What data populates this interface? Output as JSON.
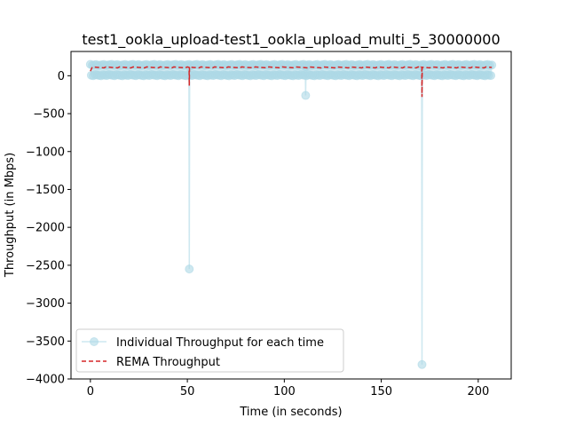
{
  "chart_data": {
    "type": "line",
    "title": "test1_ookla_upload-test1_ookla_upload_multi_5_30000000",
    "xlabel": "Time (in seconds)",
    "ylabel": "Throughput (in Mbps)",
    "xlim": [
      -10,
      217
    ],
    "ylim": [
      -4000,
      320
    ],
    "xticks": [
      0,
      50,
      100,
      150,
      200
    ],
    "yticks": [
      0,
      -500,
      -1000,
      -1500,
      -2000,
      -2500,
      -3000,
      -3500,
      -4000
    ],
    "xtick_labels": [
      "0",
      "50",
      "100",
      "150",
      "200"
    ],
    "ytick_labels": [
      "0",
      "−500",
      "−1000",
      "−1500",
      "−2000",
      "−2500",
      "−3000",
      "−3500",
      "−4000"
    ],
    "legend_position": "lower-left",
    "series": [
      {
        "name": "Individual Throughput for each time",
        "color": "#add8e6",
        "style": "line-with-circle-markers",
        "baseline_band": [
          0,
          150
        ],
        "x_start": 0,
        "x_end": 207,
        "cycles": [
          0,
          8.6,
          17.2,
          25.8,
          34.4,
          43,
          51.6,
          60.2,
          68.8,
          77.4,
          86,
          94.6,
          103.2,
          111.8,
          120.4,
          129,
          137.6,
          146.2,
          154.8,
          163.4,
          172,
          180.6,
          189.2,
          197.8,
          206.4
        ],
        "outliers": [
          {
            "x": 51,
            "y": -2550
          },
          {
            "x": 111,
            "y": -260
          },
          {
            "x": 171,
            "y": -3810
          }
        ]
      },
      {
        "name": "REMA Throughput",
        "color": "#d62728",
        "style": "dashed",
        "level": 110,
        "dips": [
          {
            "x": 51,
            "y": -130
          },
          {
            "x": 171,
            "y": -280
          }
        ]
      }
    ]
  }
}
